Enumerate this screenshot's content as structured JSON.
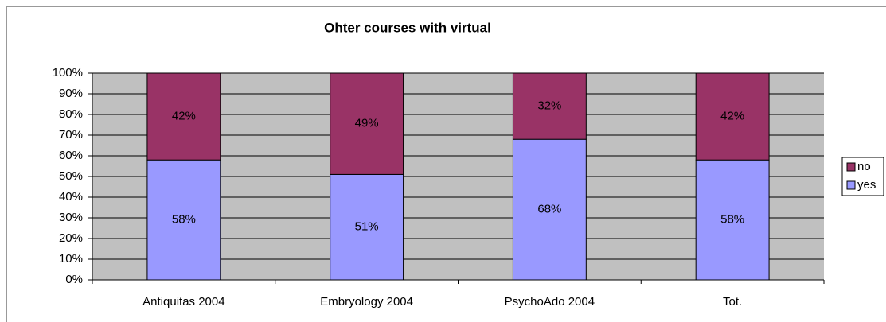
{
  "chart_data": {
    "type": "stacked_bar",
    "title": "Ohter courses with virtual",
    "categories": [
      "Antiquitas 2004",
      "Embryology 2004",
      "PsychoAdo 2004",
      "Tot."
    ],
    "series": [
      {
        "name": "yes",
        "color": "#9999ff",
        "values": [
          58,
          51,
          68,
          58
        ],
        "value_labels": [
          "58%",
          "51%",
          "68%",
          "58%"
        ]
      },
      {
        "name": "no",
        "color": "#993366",
        "values": [
          42,
          49,
          32,
          42
        ],
        "value_labels": [
          "42%",
          "49%",
          "32%",
          "42%"
        ]
      }
    ],
    "ylim": [
      0,
      100
    ],
    "yticks": [
      {
        "value": 0,
        "label": "0%"
      },
      {
        "value": 10,
        "label": "10%"
      },
      {
        "value": 20,
        "label": "20%"
      },
      {
        "value": 30,
        "label": "30%"
      },
      {
        "value": 40,
        "label": "40%"
      },
      {
        "value": 50,
        "label": "50%"
      },
      {
        "value": 60,
        "label": "60%"
      },
      {
        "value": 70,
        "label": "70%"
      },
      {
        "value": 80,
        "label": "80%"
      },
      {
        "value": 90,
        "label": "90%"
      },
      {
        "value": 100,
        "label": "100%"
      }
    ],
    "grid": true,
    "legend": "right"
  }
}
